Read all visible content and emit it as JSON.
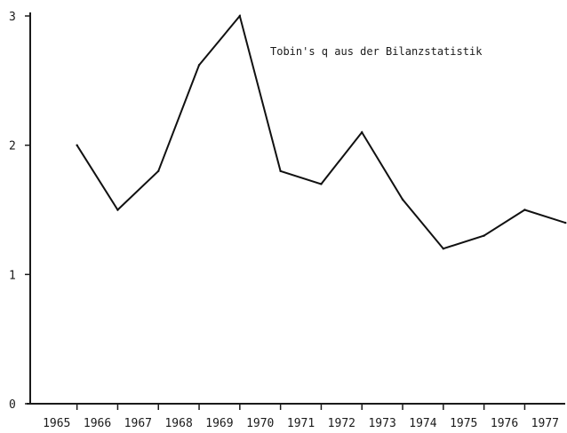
{
  "chart_data": {
    "type": "line",
    "title": "",
    "annotation": "Tobin's q aus der Bilanzstatistik",
    "xlabel": "",
    "ylabel": "",
    "x_tick_labels": [
      "1965",
      "1966",
      "1967",
      "1968",
      "1969",
      "1970",
      "1971",
      "1972",
      "1973",
      "1974",
      "1975",
      "1976",
      "1977"
    ],
    "y_ticks": [
      0,
      1,
      2,
      3
    ],
    "y_tick_labels": [
      "0",
      "1",
      "2",
      "3"
    ],
    "xlim": [
      1965,
      1978.2
    ],
    "ylim": [
      0,
      3
    ],
    "grid": false,
    "series": [
      {
        "x": [
          1965.8,
          1966.8,
          1967.8,
          1968.8,
          1969.8,
          1970.8,
          1971.8,
          1972.8,
          1973.8,
          1974.8,
          1975.8,
          1976.8,
          1977.8
        ],
        "y": [
          2.0,
          1.5,
          1.8,
          2.62,
          3.0,
          1.8,
          1.7,
          2.1,
          1.58,
          1.2,
          1.3,
          1.5,
          1.4
        ]
      }
    ]
  }
}
